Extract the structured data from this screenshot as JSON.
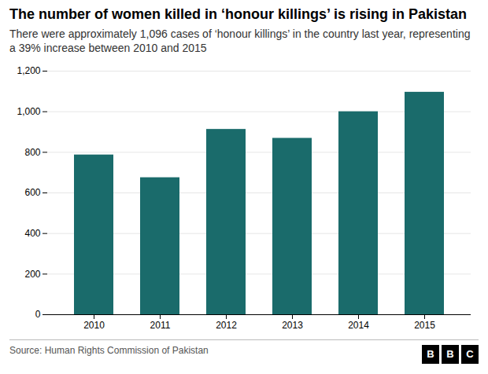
{
  "chart_data": {
    "type": "bar",
    "title": "The number of women killed in ‘honour killings’ is rising in Pakistan",
    "subtitle": "There were approximately 1,096 cases of ‘honour killings’ in the country last year, representing a 39% increase between 2010 and 2015",
    "source": "Source: Human Rights Commission of Pakistan",
    "annotations": [
      "B",
      "B",
      "C"
    ],
    "categories": [
      "2010",
      "2011",
      "2012",
      "2013",
      "2014",
      "2015"
    ],
    "values": [
      787,
      675,
      913,
      869,
      1000,
      1096
    ],
    "color": "#1a6b6b",
    "ylim": [
      0,
      1200
    ],
    "yticks": [
      0,
      200,
      400,
      600,
      800,
      {
        "value": 1000,
        "label": "1,000"
      },
      {
        "value": 1200,
        "label": "1,200"
      }
    ],
    "grid": true
  }
}
